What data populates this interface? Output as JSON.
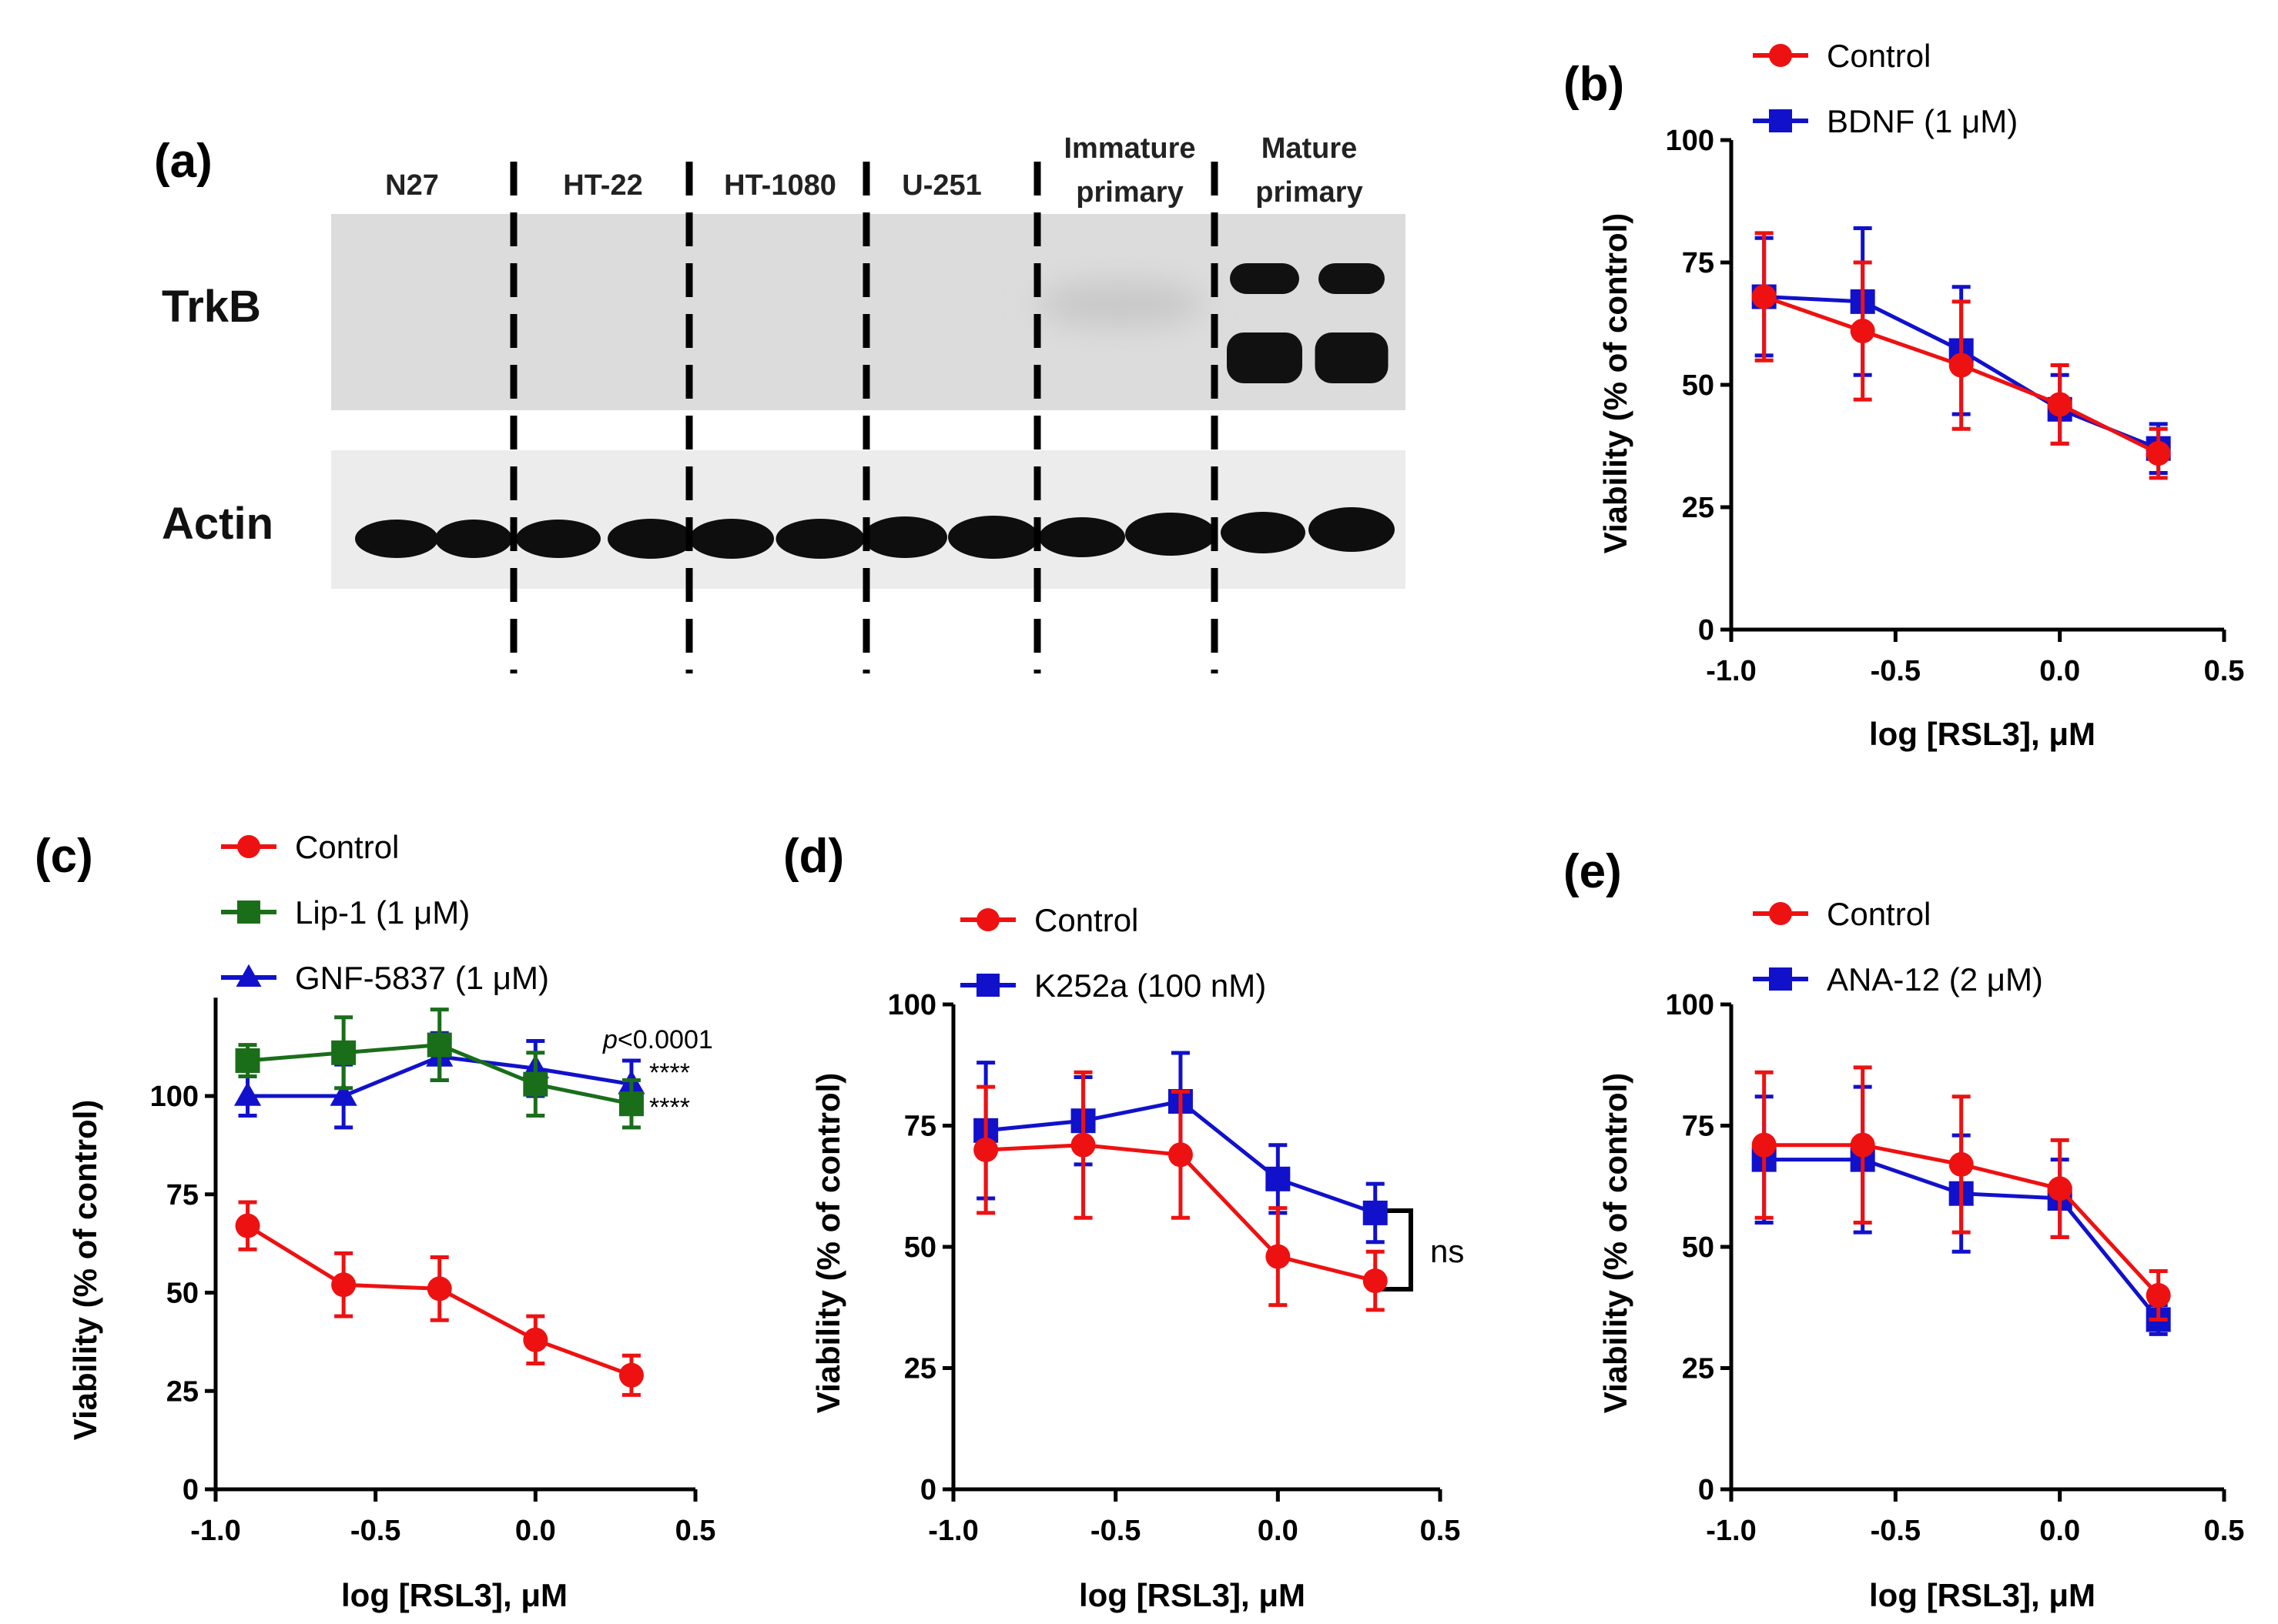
{
  "figure": {
    "colors": {
      "control": "#ee1111",
      "blue": "#1111cc",
      "green": "#1a6e1a"
    }
  },
  "blot": {
    "label": "(a)",
    "lanes": [
      {
        "line1": "N27",
        "line2": ""
      },
      {
        "line1": "HT-22",
        "line2": ""
      },
      {
        "line1": "HT-1080",
        "line2": ""
      },
      {
        "line1": "U-251",
        "line2": ""
      },
      {
        "line1": "Immature",
        "line2": "primary"
      },
      {
        "line1": "Mature",
        "line2": "primary"
      }
    ],
    "rows": [
      "TrkB",
      "Actin"
    ]
  },
  "chart_data": [
    {
      "panel": "(b)",
      "type": "line",
      "x": [
        -0.9,
        -0.6,
        -0.3,
        0.0,
        0.3
      ],
      "xlabel": "log [RSL3], μM",
      "ylabel": "Viability (% of control)",
      "xlim": [
        -1.0,
        0.5
      ],
      "ylim": [
        0,
        100
      ],
      "xticks": [
        "-1.0",
        "-0.5",
        "0.0",
        "0.5"
      ],
      "yticks": [
        "0",
        "25",
        "50",
        "75",
        "100"
      ],
      "legend_position": "top",
      "series": [
        {
          "name": "Control",
          "color": "#ee1111",
          "marker": "circle",
          "values": [
            68,
            61,
            54,
            46,
            36
          ],
          "errors": [
            13,
            14,
            13,
            8,
            5
          ]
        },
        {
          "name": "BDNF (1 μM)",
          "color": "#1111cc",
          "marker": "square",
          "values": [
            68,
            67,
            57,
            45,
            37
          ],
          "errors": [
            12,
            15,
            13,
            7,
            5
          ]
        }
      ]
    },
    {
      "panel": "(c)",
      "type": "line",
      "x": [
        -0.9,
        -0.6,
        -0.3,
        0.0,
        0.3
      ],
      "xlabel": "log [RSL3], μM",
      "ylabel": "Viability (% of control)",
      "xlim": [
        -1.0,
        0.5
      ],
      "ylim": [
        0,
        125
      ],
      "xticks": [
        "-1.0",
        "-0.5",
        "0.0",
        "0.5"
      ],
      "yticks": [
        "0",
        "25",
        "50",
        "75",
        "100"
      ],
      "legend_position": "top",
      "annotations": [
        "p<0.0001",
        "****",
        "****"
      ],
      "series": [
        {
          "name": "Control",
          "color": "#ee1111",
          "marker": "circle",
          "values": [
            67,
            52,
            51,
            38,
            29
          ],
          "errors": [
            6,
            8,
            8,
            6,
            5
          ]
        },
        {
          "name": "Lip-1 (1 μM)",
          "color": "#1a6e1a",
          "marker": "square",
          "values": [
            109,
            111,
            113,
            103,
            98
          ],
          "errors": [
            4,
            9,
            9,
            8,
            6
          ]
        },
        {
          "name": "GNF-5837 (1 μM)",
          "color": "#1111cc",
          "marker": "triangle",
          "values": [
            100,
            100,
            110,
            107,
            103
          ],
          "errors": [
            5,
            8,
            6,
            7,
            6
          ]
        }
      ]
    },
    {
      "panel": "(d)",
      "type": "line",
      "x": [
        -0.9,
        -0.6,
        -0.3,
        0.0,
        0.3
      ],
      "xlabel": "log [RSL3], μM",
      "ylabel": "Viability (% of control)",
      "xlim": [
        -1.0,
        0.5
      ],
      "ylim": [
        0,
        100
      ],
      "xticks": [
        "-1.0",
        "-0.5",
        "0.0",
        "0.5"
      ],
      "yticks": [
        "0",
        "25",
        "50",
        "75",
        "100"
      ],
      "legend_position": "top",
      "annotations": [
        "ns"
      ],
      "series": [
        {
          "name": "Control",
          "color": "#ee1111",
          "marker": "circle",
          "values": [
            70,
            71,
            69,
            48,
            43
          ],
          "errors": [
            13,
            15,
            13,
            10,
            6
          ]
        },
        {
          "name": "K252a (100 nM)",
          "color": "#1111cc",
          "marker": "square",
          "values": [
            74,
            76,
            80,
            64,
            57
          ],
          "errors": [
            14,
            9,
            10,
            7,
            6
          ]
        }
      ]
    },
    {
      "panel": "(e)",
      "type": "line",
      "x": [
        -0.9,
        -0.6,
        -0.3,
        0.0,
        0.3
      ],
      "xlabel": "log [RSL3], μM",
      "ylabel": "Viability (% of control)",
      "xlim": [
        -1.0,
        0.5
      ],
      "ylim": [
        0,
        100
      ],
      "xticks": [
        "-1.0",
        "-0.5",
        "0.0",
        "0.5"
      ],
      "yticks": [
        "0",
        "25",
        "50",
        "75",
        "100"
      ],
      "legend_position": "top",
      "series": [
        {
          "name": "Control",
          "color": "#ee1111",
          "marker": "circle",
          "values": [
            71,
            71,
            67,
            62,
            40
          ],
          "errors": [
            15,
            16,
            14,
            10,
            5
          ]
        },
        {
          "name": "ANA-12 (2 μM)",
          "color": "#1111cc",
          "marker": "square",
          "values": [
            68,
            68,
            61,
            60,
            35
          ],
          "errors": [
            13,
            15,
            12,
            8,
            3
          ]
        }
      ]
    }
  ]
}
